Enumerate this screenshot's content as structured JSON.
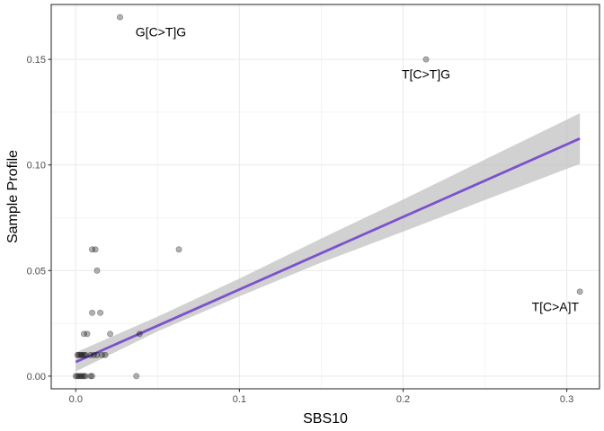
{
  "chart_data": {
    "type": "scatter",
    "xlabel": "SBS10",
    "ylabel": "Sample Profile",
    "xlim": [
      -0.015,
      0.32
    ],
    "ylim": [
      -0.006,
      0.176
    ],
    "xticks": [
      0.0,
      0.1,
      0.2,
      0.3
    ],
    "xtick_labels": [
      "0.0",
      "0.1",
      "0.2",
      "0.3"
    ],
    "yticks": [
      0.0,
      0.05,
      0.1,
      0.15
    ],
    "ytick_labels": [
      "0.00",
      "0.05",
      "0.10",
      "0.15"
    ],
    "grid": true,
    "legend": "none",
    "colors": {
      "points": "#000000",
      "fit_line": "#7B52CC",
      "confidence_band": "#BEBEBE",
      "grid": "#EBEBEB",
      "panel_border": "#333333"
    },
    "points": [
      {
        "x": 0.027,
        "y": 0.17
      },
      {
        "x": 0.214,
        "y": 0.15
      },
      {
        "x": 0.308,
        "y": 0.04
      },
      {
        "x": 0.063,
        "y": 0.06
      },
      {
        "x": 0.01,
        "y": 0.06
      },
      {
        "x": 0.012,
        "y": 0.06
      },
      {
        "x": 0.013,
        "y": 0.05
      },
      {
        "x": 0.01,
        "y": 0.03
      },
      {
        "x": 0.015,
        "y": 0.03
      },
      {
        "x": 0.005,
        "y": 0.02
      },
      {
        "x": 0.007,
        "y": 0.02
      },
      {
        "x": 0.021,
        "y": 0.02
      },
      {
        "x": 0.039,
        "y": 0.02
      },
      {
        "x": 0.001,
        "y": 0.01
      },
      {
        "x": 0.002,
        "y": 0.01
      },
      {
        "x": 0.003,
        "y": 0.01
      },
      {
        "x": 0.004,
        "y": 0.01
      },
      {
        "x": 0.005,
        "y": 0.01
      },
      {
        "x": 0.006,
        "y": 0.01
      },
      {
        "x": 0.009,
        "y": 0.01
      },
      {
        "x": 0.011,
        "y": 0.01
      },
      {
        "x": 0.013,
        "y": 0.01
      },
      {
        "x": 0.016,
        "y": 0.01
      },
      {
        "x": 0.018,
        "y": 0.01
      },
      {
        "x": 0.0,
        "y": 0.0
      },
      {
        "x": 0.001,
        "y": 0.0
      },
      {
        "x": 0.002,
        "y": 0.0
      },
      {
        "x": 0.003,
        "y": 0.0
      },
      {
        "x": 0.004,
        "y": 0.0
      },
      {
        "x": 0.005,
        "y": 0.0
      },
      {
        "x": 0.006,
        "y": 0.0
      },
      {
        "x": 0.009,
        "y": 0.0
      },
      {
        "x": 0.01,
        "y": 0.0
      },
      {
        "x": 0.037,
        "y": 0.0
      }
    ],
    "fit": {
      "x": [
        0.0,
        0.308
      ],
      "y": [
        0.0067,
        0.1125
      ],
      "band_x": [
        0.0,
        0.05,
        0.1,
        0.15,
        0.2,
        0.25,
        0.308
      ],
      "band_lower": [
        0.0022,
        0.0212,
        0.0378,
        0.0538,
        0.0684,
        0.0834,
        0.1005
      ],
      "band_upper": [
        0.0112,
        0.0282,
        0.0462,
        0.0652,
        0.0836,
        0.1026,
        0.1245
      ]
    },
    "annotations": [
      {
        "text": "G[C>T]G",
        "x": 0.052,
        "y": 0.163
      },
      {
        "text": "T[C>T]G",
        "x": 0.214,
        "y": 0.143
      },
      {
        "text": "T[C>A]T",
        "x": 0.293,
        "y": 0.033
      }
    ]
  }
}
